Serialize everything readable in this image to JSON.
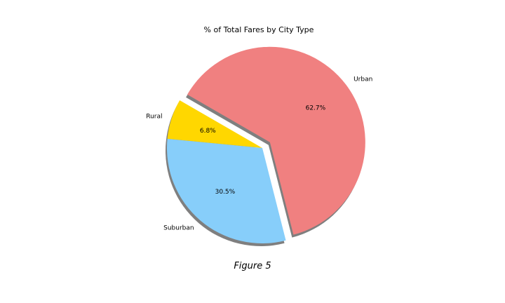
{
  "chart_data": {
    "type": "pie",
    "title": "% of Total Fares by City Type",
    "caption": "Figure 5",
    "categories": [
      "Rural",
      "Suburban",
      "Urban"
    ],
    "values": [
      6.8,
      30.5,
      62.7
    ],
    "value_labels": [
      "6.8%",
      "30.5%",
      "62.7%"
    ],
    "colors": [
      "#FFD700",
      "#87CEFA",
      "#F08080"
    ],
    "exploded": [
      "Urban"
    ],
    "shadow": true,
    "legend": "none"
  }
}
